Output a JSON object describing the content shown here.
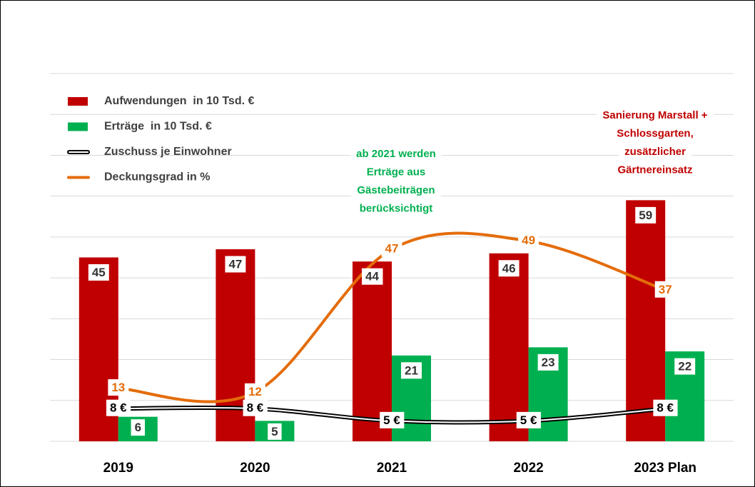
{
  "chart_data": {
    "type": "bar",
    "categories": [
      "2019",
      "2020",
      "2021",
      "2022",
      "2023 Plan"
    ],
    "series": [
      {
        "name": "Aufwendungen  in 10 Tsd. €",
        "color": "#c00000",
        "type": "bar",
        "values": [
          45,
          47,
          44,
          46,
          59
        ]
      },
      {
        "name": "Erträge  in 10 Tsd. €",
        "color": "#00b050",
        "type": "bar",
        "values": [
          6,
          5,
          21,
          23,
          22
        ]
      },
      {
        "name": "Zuschuss je Einwohner",
        "color": "#000000",
        "type": "line",
        "values": [
          8,
          8,
          5,
          5,
          8
        ],
        "value_labels": [
          "8 €",
          "8 €",
          "5 €",
          "5 €",
          "8 €"
        ]
      },
      {
        "name": "Deckungsgrad in %",
        "color": "#e46c0a",
        "type": "line",
        "values": [
          13,
          12,
          47,
          49,
          37
        ]
      }
    ],
    "annotations": [
      {
        "text": [
          "ab 2021 werden",
          "Erträge aus",
          "Gästebeiträgen",
          "berücksichtigt"
        ],
        "color": "#00b050"
      },
      {
        "text": [
          "Sanierung Marstall +",
          "Schlossgarten,",
          "zusätzlicher",
          "Gärtnereinsatz"
        ],
        "color": "#c00000"
      }
    ],
    "ylim": [
      0,
      90
    ],
    "yticks": [
      0,
      10,
      20,
      30,
      40,
      50,
      60,
      70,
      80,
      90
    ],
    "grid": true
  }
}
